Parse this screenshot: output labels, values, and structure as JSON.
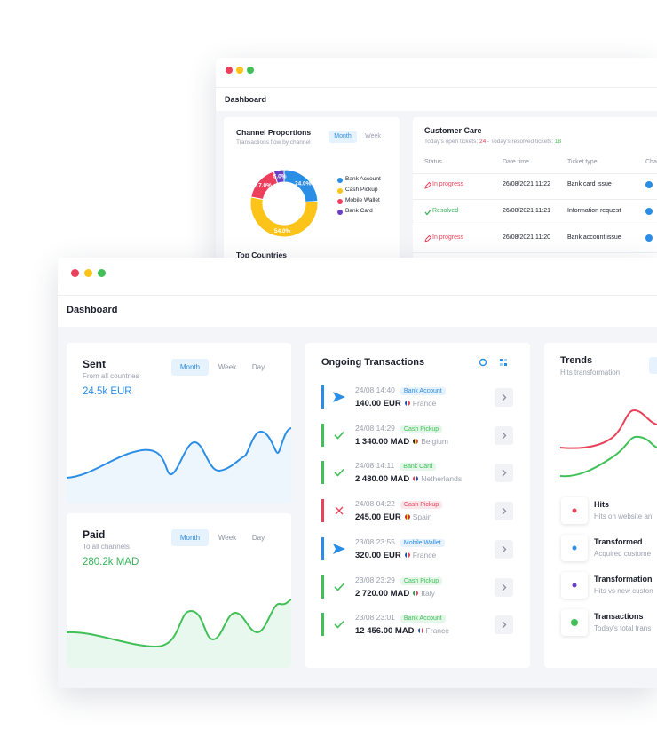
{
  "back_window": {
    "title": "Dashboard",
    "channel_card": {
      "title": "Channel Proportions",
      "subtitle": "Transactions flow by channel",
      "tabs": [
        "Month",
        "Week"
      ],
      "donut": {
        "type": "donut",
        "categories": [
          "Bank Account",
          "Cash Pickup",
          "Mobile Wallet",
          "Bank Card"
        ],
        "values": [
          24.0,
          54.0,
          17.0,
          5.0
        ],
        "value_labels": [
          "24.0%",
          "54.0%",
          "17.0%",
          "5.0%"
        ],
        "colors": [
          "#2b8ee6",
          "#fcc419",
          "#ec3f5c",
          "#6a3fc4"
        ]
      },
      "next_section": "Top Countries"
    },
    "customer_care": {
      "title": "Customer Care",
      "open_label": "Today's open tickets:",
      "open_count": 24,
      "resolved_label": "- Today's resolved tickets:",
      "resolved_count": 18,
      "columns": [
        "Status",
        "Date time",
        "Ticket type",
        "Cha"
      ],
      "rows": [
        [
          "In progress",
          "26/08/2021 11:22",
          "Bank card issue"
        ],
        [
          "Resolved",
          "26/08/2021 11:21",
          "Information request"
        ],
        [
          "In progress",
          "26/08/2021 11:20",
          "Bank account issue"
        ]
      ]
    }
  },
  "front_window": {
    "title": "Dashboard",
    "sent": {
      "title": "Sent",
      "subtitle": "From all countries",
      "amount": "24.5k EUR",
      "tabs": [
        "Month",
        "Week",
        "Day"
      ]
    },
    "paid": {
      "title": "Paid",
      "subtitle": "To all channels",
      "amount": "280.2k MAD",
      "tabs": [
        "Month",
        "Week",
        "Day"
      ]
    },
    "ongoing": {
      "title": "Ongoing Transactions",
      "rows": [
        {
          "time": "24/08 14:40",
          "tag": "Bank Account",
          "amount": "140.00 EUR",
          "country": "France"
        },
        {
          "time": "24/08 14:29",
          "tag": "Cash Pickup",
          "amount": "1 340.00 MAD",
          "country": "Belgium"
        },
        {
          "time": "24/08 14:11",
          "tag": "Bank Card",
          "amount": "2 480.00 MAD",
          "country": "Netherlands"
        },
        {
          "time": "24/08 04:22",
          "tag": "Cash Pickup",
          "amount": "245.00 EUR",
          "country": "Spain"
        },
        {
          "time": "23/08 23:55",
          "tag": "Mobile Wallet",
          "amount": "320.00 EUR",
          "country": "France"
        },
        {
          "time": "23/08 23:29",
          "tag": "Cash Pickup",
          "amount": "2 720.00 MAD",
          "country": "Italy"
        },
        {
          "time": "23/08 23:01",
          "tag": "Bank Account",
          "amount": "12 456.00 MAD",
          "country": "France"
        }
      ]
    },
    "trends": {
      "title": "Trends",
      "subtitle": "Hits transformation",
      "items": [
        {
          "title": "Hits",
          "subtitle": "Hits on website an"
        },
        {
          "title": "Transformed",
          "subtitle": "Acquired custome"
        },
        {
          "title": "Transformation",
          "subtitle": "Hits vs new custon"
        },
        {
          "title": "Transactions",
          "subtitle": "Today's total trans"
        }
      ]
    }
  }
}
